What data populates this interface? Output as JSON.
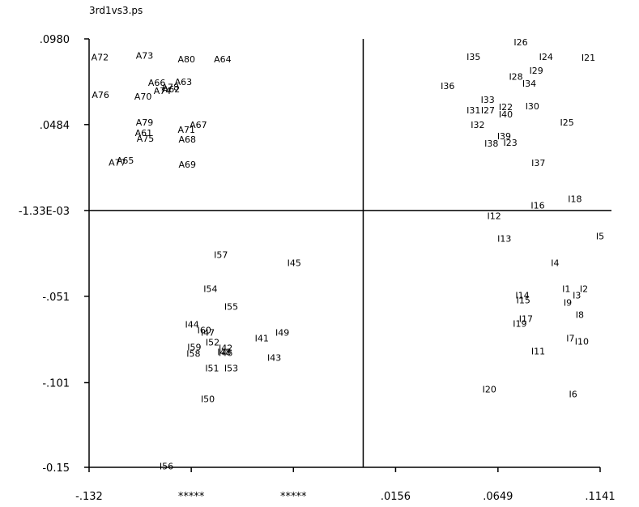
{
  "window": {
    "title": "3rd1vs3.ps"
  },
  "chart_data": {
    "type": "scatter",
    "title": "3rd1vs3.ps",
    "xlim": [
      -0.132,
      0.1141
    ],
    "ylim": [
      -0.15,
      0.098
    ],
    "x_ticks": [
      {
        "value": -0.132,
        "label": "-.132"
      },
      {
        "value": -0.0828,
        "label": "*****"
      },
      {
        "value": -0.0336,
        "label": "*****"
      },
      {
        "value": 0.0156,
        "label": ".0156"
      },
      {
        "value": 0.0649,
        "label": ".0649"
      },
      {
        "value": 0.1141,
        "label": ".1141"
      }
    ],
    "y_ticks": [
      {
        "value": 0.098,
        "label": ".0980"
      },
      {
        "value": 0.0484,
        "label": ".0484"
      },
      {
        "value": -0.00133,
        "label": "-1.33E-03"
      },
      {
        "value": -0.051,
        "label": "-.051"
      },
      {
        "value": -0.101,
        "label": "-.101"
      },
      {
        "value": -0.15,
        "label": "-0.15"
      }
    ],
    "crosshair": {
      "x": 0.0,
      "y": -0.00133
    },
    "points": [
      {
        "label": "A72",
        "x": -0.131,
        "y": 0.0875
      },
      {
        "label": "A73",
        "x": -0.1095,
        "y": 0.0885
      },
      {
        "label": "A80",
        "x": -0.0893,
        "y": 0.0862
      },
      {
        "label": "A64",
        "x": -0.0719,
        "y": 0.0862
      },
      {
        "label": "A66",
        "x": -0.1036,
        "y": 0.0727
      },
      {
        "label": "A63",
        "x": -0.0908,
        "y": 0.0732
      },
      {
        "label": "A78",
        "x": -0.0971,
        "y": 0.07
      },
      {
        "label": "A74",
        "x": -0.1009,
        "y": 0.0681
      },
      {
        "label": "A62",
        "x": -0.0966,
        "y": 0.069
      },
      {
        "label": "A76",
        "x": -0.1307,
        "y": 0.0657
      },
      {
        "label": "A70",
        "x": -0.1102,
        "y": 0.0646
      },
      {
        "label": "A79",
        "x": -0.1095,
        "y": 0.0497
      },
      {
        "label": "A67",
        "x": -0.0836,
        "y": 0.0484
      },
      {
        "label": "A71",
        "x": -0.0893,
        "y": 0.0454
      },
      {
        "label": "A61",
        "x": -0.1099,
        "y": 0.0436
      },
      {
        "label": "A75",
        "x": -0.1091,
        "y": 0.0403
      },
      {
        "label": "A68",
        "x": -0.0889,
        "y": 0.0399
      },
      {
        "label": "A77",
        "x": -0.1226,
        "y": 0.0265
      },
      {
        "label": "A65",
        "x": -0.1188,
        "y": 0.0277
      },
      {
        "label": "A69",
        "x": -0.0889,
        "y": 0.0253
      },
      {
        "label": "I26",
        "x": 0.0725,
        "y": 0.0962
      },
      {
        "label": "I35",
        "x": 0.0498,
        "y": 0.0877
      },
      {
        "label": "I24",
        "x": 0.0847,
        "y": 0.0877
      },
      {
        "label": "I21",
        "x": 0.1051,
        "y": 0.0872
      },
      {
        "label": "I29",
        "x": 0.08,
        "y": 0.0797
      },
      {
        "label": "I28",
        "x": 0.0702,
        "y": 0.0763
      },
      {
        "label": "I34",
        "x": 0.0766,
        "y": 0.0722
      },
      {
        "label": "I36",
        "x": 0.0373,
        "y": 0.0708
      },
      {
        "label": "I33",
        "x": 0.0566,
        "y": 0.0628
      },
      {
        "label": "I22",
        "x": 0.0653,
        "y": 0.0586
      },
      {
        "label": "I30",
        "x": 0.0781,
        "y": 0.059
      },
      {
        "label": "I31",
        "x": 0.0498,
        "y": 0.0567
      },
      {
        "label": "I27",
        "x": 0.0567,
        "y": 0.0567
      },
      {
        "label": "I40",
        "x": 0.0653,
        "y": 0.0544
      },
      {
        "label": "I25",
        "x": 0.0948,
        "y": 0.0497
      },
      {
        "label": "I32",
        "x": 0.0518,
        "y": 0.0482
      },
      {
        "label": "I39",
        "x": 0.0645,
        "y": 0.0417
      },
      {
        "label": "I38",
        "x": 0.0584,
        "y": 0.0375
      },
      {
        "label": "I23",
        "x": 0.0675,
        "y": 0.0379
      },
      {
        "label": "I37",
        "x": 0.081,
        "y": 0.0262
      },
      {
        "label": "I18",
        "x": 0.0986,
        "y": 0.0055
      },
      {
        "label": "I16",
        "x": 0.0807,
        "y": 0.0016
      },
      {
        "label": "I12",
        "x": 0.0597,
        "y": -0.0045
      },
      {
        "label": "I5",
        "x": 0.1121,
        "y": -0.0162
      },
      {
        "label": "I13",
        "x": 0.0646,
        "y": -0.0176
      },
      {
        "label": "I4",
        "x": 0.0904,
        "y": -0.0316
      },
      {
        "label": "I57",
        "x": -0.0719,
        "y": -0.0269
      },
      {
        "label": "I45",
        "x": -0.0366,
        "y": -0.0316
      },
      {
        "label": "I1",
        "x": 0.0958,
        "y": -0.0466
      },
      {
        "label": "I2",
        "x": 0.1043,
        "y": -0.0466
      },
      {
        "label": "I14",
        "x": 0.0733,
        "y": -0.0504
      },
      {
        "label": "I3",
        "x": 0.1009,
        "y": -0.0504
      },
      {
        "label": "I15",
        "x": 0.0738,
        "y": -0.0532
      },
      {
        "label": "I9",
        "x": 0.0965,
        "y": -0.0546
      },
      {
        "label": "I54",
        "x": -0.0769,
        "y": -0.0466
      },
      {
        "label": "I55",
        "x": -0.0669,
        "y": -0.0569
      },
      {
        "label": "I8",
        "x": 0.1023,
        "y": -0.0616
      },
      {
        "label": "I17",
        "x": 0.075,
        "y": -0.0639
      },
      {
        "label": "I19",
        "x": 0.0721,
        "y": -0.0668
      },
      {
        "label": "I44",
        "x": -0.0858,
        "y": -0.0672
      },
      {
        "label": "I60",
        "x": -0.0799,
        "y": -0.0705
      },
      {
        "label": "I47",
        "x": -0.0782,
        "y": -0.0719
      },
      {
        "label": "I49",
        "x": -0.0423,
        "y": -0.0719
      },
      {
        "label": "I41",
        "x": -0.0522,
        "y": -0.0752
      },
      {
        "label": "I52",
        "x": -0.0759,
        "y": -0.0775
      },
      {
        "label": "I7",
        "x": 0.0978,
        "y": -0.0752
      },
      {
        "label": "I10",
        "x": 0.1019,
        "y": -0.0771
      },
      {
        "label": "I59",
        "x": -0.0847,
        "y": -0.0803
      },
      {
        "label": "I42",
        "x": -0.0696,
        "y": -0.0808
      },
      {
        "label": "I48",
        "x": -0.0703,
        "y": -0.0831
      },
      {
        "label": "I46",
        "x": -0.0696,
        "y": -0.0836
      },
      {
        "label": "I58",
        "x": -0.0851,
        "y": -0.0841
      },
      {
        "label": "I11",
        "x": 0.0809,
        "y": -0.0827
      },
      {
        "label": "I43",
        "x": -0.0462,
        "y": -0.0864
      },
      {
        "label": "I51",
        "x": -0.0761,
        "y": -0.0925
      },
      {
        "label": "I53",
        "x": -0.0669,
        "y": -0.0925
      },
      {
        "label": "I20",
        "x": 0.0574,
        "y": -0.1048
      },
      {
        "label": "I6",
        "x": 0.0991,
        "y": -0.1076
      },
      {
        "label": "I50",
        "x": -0.0782,
        "y": -0.1104
      },
      {
        "label": "I56",
        "x": -0.0981,
        "y": -0.1494
      }
    ]
  }
}
